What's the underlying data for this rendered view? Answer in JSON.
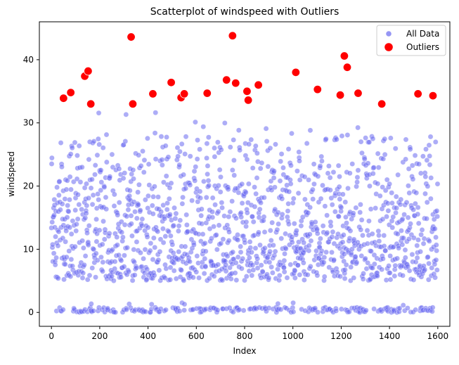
{
  "chart_data": {
    "type": "scatter",
    "title": "Scatterplot of windspeed with Outliers",
    "xlabel": "Index",
    "ylabel": "windspeed",
    "xlim": [
      -50,
      1650
    ],
    "ylim": [
      -2.2,
      46
    ],
    "xticks": [
      0,
      200,
      400,
      600,
      800,
      1000,
      1200,
      1400,
      1600
    ],
    "yticks": [
      0,
      10,
      20,
      30,
      40
    ],
    "grid": false,
    "legend_position": "top-right",
    "series": [
      {
        "name": "All Data",
        "color": "#6a6af0",
        "n_points": 1600,
        "zero_fraction": 0.12,
        "value_range": [
          5,
          32.5
        ],
        "outlier_threshold": 32.5
      },
      {
        "name": "Outliers",
        "color": "#ff0000",
        "points": [
          [
            50,
            33.9
          ],
          [
            80,
            34.8
          ],
          [
            138,
            37.4
          ],
          [
            152,
            38.2
          ],
          [
            163,
            33.0
          ],
          [
            330,
            43.6
          ],
          [
            337,
            33.0
          ],
          [
            420,
            34.6
          ],
          [
            496,
            36.4
          ],
          [
            537,
            34.0
          ],
          [
            550,
            34.6
          ],
          [
            645,
            34.7
          ],
          [
            725,
            36.8
          ],
          [
            750,
            43.8
          ],
          [
            763,
            36.3
          ],
          [
            810,
            35.0
          ],
          [
            815,
            33.6
          ],
          [
            857,
            36.0
          ],
          [
            1012,
            38.0
          ],
          [
            1102,
            35.3
          ],
          [
            1196,
            34.4
          ],
          [
            1213,
            40.6
          ],
          [
            1225,
            38.8
          ],
          [
            1270,
            34.7
          ],
          [
            1368,
            33.0
          ],
          [
            1518,
            34.6
          ],
          [
            1580,
            34.3
          ]
        ]
      }
    ]
  }
}
